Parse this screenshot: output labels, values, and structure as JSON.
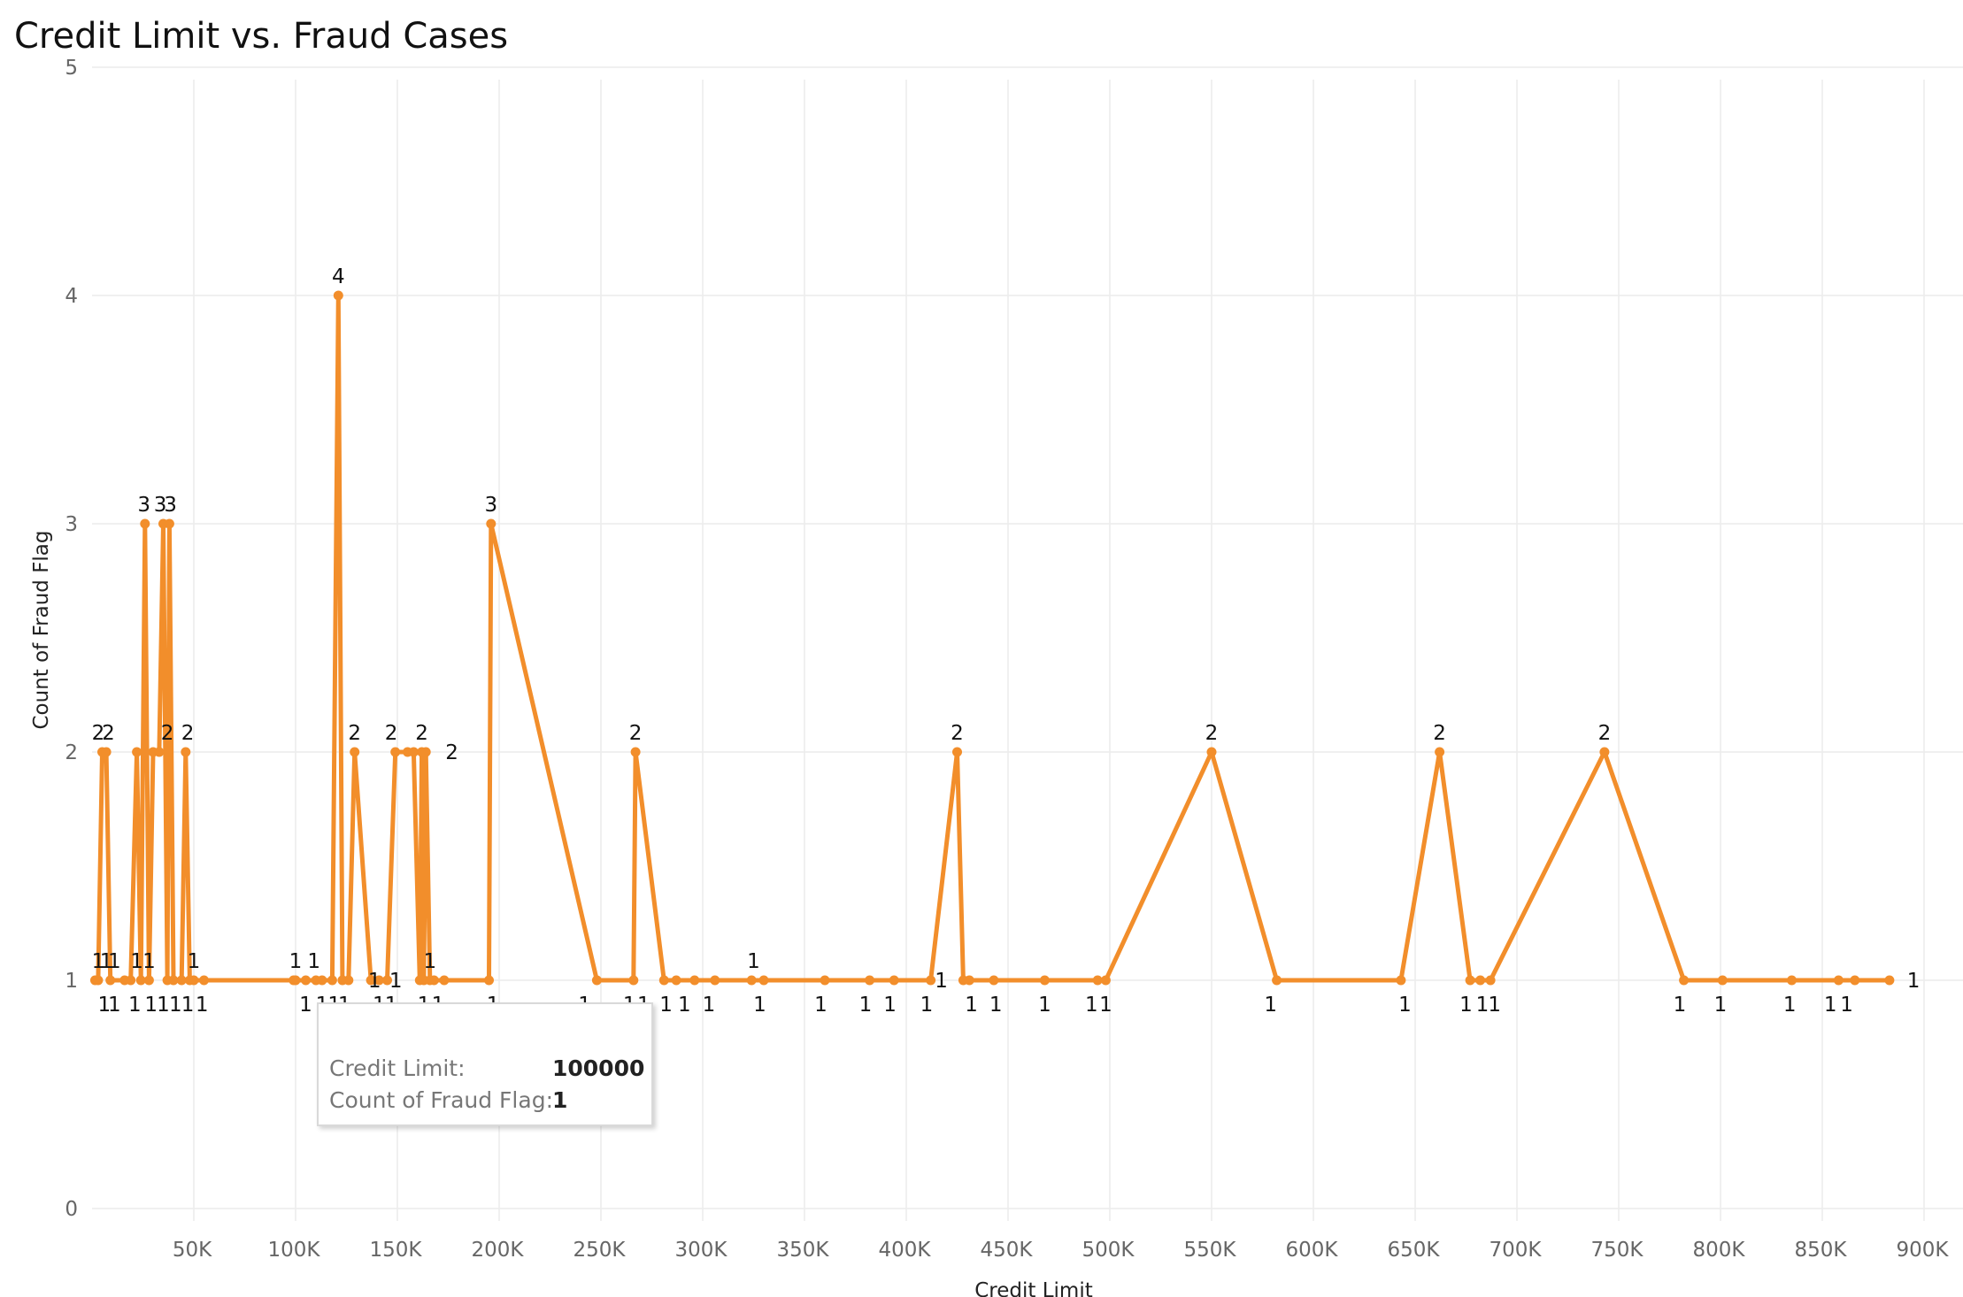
{
  "chart_data": {
    "type": "line",
    "title": "Credit Limit vs. Fraud Cases",
    "xlabel": "Credit Limit",
    "ylabel": "Count of Fraud Flag",
    "xlim": [
      0,
      925000
    ],
    "ylim": [
      0,
      5
    ],
    "x_ticks": [
      "50K",
      "100K",
      "150K",
      "200K",
      "250K",
      "300K",
      "350K",
      "400K",
      "450K",
      "500K",
      "550K",
      "600K",
      "650K",
      "700K",
      "750K",
      "800K",
      "850K",
      "900K"
    ],
    "x_tick_values": [
      50000,
      100000,
      150000,
      200000,
      250000,
      300000,
      350000,
      400000,
      450000,
      500000,
      550000,
      600000,
      650000,
      700000,
      750000,
      800000,
      850000,
      900000
    ],
    "y_ticks": [
      "0",
      "1",
      "2",
      "3",
      "4",
      "5"
    ],
    "y_tick_values": [
      0,
      1,
      2,
      3,
      4,
      5
    ],
    "grid": true,
    "color": "#f28e2b",
    "points": [
      [
        1500,
        1
      ],
      [
        3000,
        1
      ],
      [
        5000,
        2
      ],
      [
        7000,
        2
      ],
      [
        9000,
        1
      ],
      [
        16000,
        1
      ],
      [
        19000,
        1
      ],
      [
        22000,
        2
      ],
      [
        24000,
        1
      ],
      [
        26000,
        3
      ],
      [
        28000,
        1
      ],
      [
        30000,
        2
      ],
      [
        33000,
        2
      ],
      [
        35000,
        3
      ],
      [
        37000,
        1
      ],
      [
        38000,
        3
      ],
      [
        40000,
        1
      ],
      [
        44000,
        1
      ],
      [
        46000,
        2
      ],
      [
        48000,
        1
      ],
      [
        50000,
        1
      ],
      [
        55000,
        1
      ],
      [
        99000,
        1
      ],
      [
        100000,
        1
      ],
      [
        105000,
        1
      ],
      [
        110000,
        1
      ],
      [
        113000,
        1
      ],
      [
        118000,
        1
      ],
      [
        121000,
        4
      ],
      [
        123000,
        1
      ],
      [
        126000,
        1
      ],
      [
        129000,
        2
      ],
      [
        137000,
        1
      ],
      [
        141000,
        1
      ],
      [
        145000,
        1
      ],
      [
        149000,
        2
      ],
      [
        155000,
        2
      ],
      [
        158000,
        2
      ],
      [
        161000,
        1
      ],
      [
        162000,
        2
      ],
      [
        163000,
        1
      ],
      [
        164000,
        2
      ],
      [
        166000,
        1
      ],
      [
        168000,
        1
      ],
      [
        173000,
        1
      ],
      [
        195000,
        1
      ],
      [
        196000,
        3
      ],
      [
        248000,
        1
      ],
      [
        266000,
        1
      ],
      [
        267000,
        2
      ],
      [
        281000,
        1
      ],
      [
        287000,
        1
      ],
      [
        296000,
        1
      ],
      [
        306000,
        1
      ],
      [
        324000,
        1
      ],
      [
        330000,
        1
      ],
      [
        360000,
        1
      ],
      [
        382000,
        1
      ],
      [
        394000,
        1
      ],
      [
        412000,
        1
      ],
      [
        425000,
        2
      ],
      [
        428000,
        1
      ],
      [
        431000,
        1
      ],
      [
        443000,
        1
      ],
      [
        468000,
        1
      ],
      [
        494000,
        1
      ],
      [
        498000,
        1
      ],
      [
        550000,
        2
      ],
      [
        582000,
        1
      ],
      [
        643000,
        1
      ],
      [
        662000,
        2
      ],
      [
        677000,
        1
      ],
      [
        682000,
        1
      ],
      [
        687000,
        1
      ],
      [
        743000,
        2
      ],
      [
        782000,
        1
      ],
      [
        801000,
        1
      ],
      [
        835000,
        1
      ],
      [
        858000,
        1
      ],
      [
        866000,
        1
      ],
      [
        883000,
        1
      ]
    ],
    "data_labels": [
      {
        "text": "1",
        "x": 3000,
        "y": 1,
        "pos": "above"
      },
      {
        "text": "1",
        "x": 7000,
        "y": 1,
        "pos": "above"
      },
      {
        "text": "1",
        "x": 11000,
        "y": 1,
        "pos": "above"
      },
      {
        "text": "1",
        "x": 22000,
        "y": 1,
        "pos": "above"
      },
      {
        "text": "1",
        "x": 28000,
        "y": 1,
        "pos": "above"
      },
      {
        "text": "2",
        "x": 3000,
        "y": 2,
        "pos": "above"
      },
      {
        "text": "2",
        "x": 8000,
        "y": 2,
        "pos": "above"
      },
      {
        "text": "3",
        "x": 25500,
        "y": 3,
        "pos": "above"
      },
      {
        "text": "3",
        "x": 33500,
        "y": 3,
        "pos": "above"
      },
      {
        "text": "3",
        "x": 38500,
        "y": 3,
        "pos": "above"
      },
      {
        "text": "2",
        "x": 37000,
        "y": 2,
        "pos": "above"
      },
      {
        "text": "2",
        "x": 47000,
        "y": 2,
        "pos": "above"
      },
      {
        "text": "1",
        "x": 50000,
        "y": 1,
        "pos": "above"
      },
      {
        "text": "1",
        "x": 6000,
        "y": 1,
        "pos": "below"
      },
      {
        "text": "1",
        "x": 11000,
        "y": 1,
        "pos": "below"
      },
      {
        "text": "1",
        "x": 21000,
        "y": 1,
        "pos": "below"
      },
      {
        "text": "1",
        "x": 29000,
        "y": 1,
        "pos": "below"
      },
      {
        "text": "1",
        "x": 35000,
        "y": 1,
        "pos": "below"
      },
      {
        "text": "1",
        "x": 41000,
        "y": 1,
        "pos": "below"
      },
      {
        "text": "1",
        "x": 47000,
        "y": 1,
        "pos": "below"
      },
      {
        "text": "1",
        "x": 54000,
        "y": 1,
        "pos": "below"
      },
      {
        "text": "1",
        "x": 100000,
        "y": 1,
        "pos": "above"
      },
      {
        "text": "1",
        "x": 109000,
        "y": 1,
        "pos": "above"
      },
      {
        "text": "1",
        "x": 105000,
        "y": 1,
        "pos": "below"
      },
      {
        "text": "1",
        "x": 113000,
        "y": 1,
        "pos": "below"
      },
      {
        "text": "1",
        "x": 119000,
        "y": 1,
        "pos": "below"
      },
      {
        "text": "1",
        "x": 124000,
        "y": 1,
        "pos": "below"
      },
      {
        "text": "4",
        "x": 121000,
        "y": 4,
        "pos": "above"
      },
      {
        "text": "1",
        "x": 133000,
        "y": 1,
        "pos": "right"
      },
      {
        "text": "2",
        "x": 129000,
        "y": 2,
        "pos": "above"
      },
      {
        "text": "1",
        "x": 141000,
        "y": 1,
        "pos": "below"
      },
      {
        "text": "1",
        "x": 147000,
        "y": 1,
        "pos": "below"
      },
      {
        "text": "2",
        "x": 147000,
        "y": 2,
        "pos": "above"
      },
      {
        "text": "2",
        "x": 162000,
        "y": 2,
        "pos": "above"
      },
      {
        "text": "2",
        "x": 171000,
        "y": 2,
        "pos": "right"
      },
      {
        "text": "1",
        "x": 155000,
        "y": 1,
        "pos": "left"
      },
      {
        "text": "1",
        "x": 166000,
        "y": 1,
        "pos": "above"
      },
      {
        "text": "1",
        "x": 163000,
        "y": 1,
        "pos": "below"
      },
      {
        "text": "1",
        "x": 170000,
        "y": 1,
        "pos": "below"
      },
      {
        "text": "3",
        "x": 196000,
        "y": 3,
        "pos": "above"
      },
      {
        "text": "1",
        "x": 197000,
        "y": 1,
        "pos": "below"
      },
      {
        "text": "1",
        "x": 242000,
        "y": 1,
        "pos": "below"
      },
      {
        "text": "2",
        "x": 267000,
        "y": 2,
        "pos": "above"
      },
      {
        "text": "1",
        "x": 264000,
        "y": 1,
        "pos": "below"
      },
      {
        "text": "1",
        "x": 271000,
        "y": 1,
        "pos": "below"
      },
      {
        "text": "1",
        "x": 282000,
        "y": 1,
        "pos": "below"
      },
      {
        "text": "1",
        "x": 291000,
        "y": 1,
        "pos": "below"
      },
      {
        "text": "1",
        "x": 303000,
        "y": 1,
        "pos": "below"
      },
      {
        "text": "1",
        "x": 325000,
        "y": 1,
        "pos": "above"
      },
      {
        "text": "1",
        "x": 328000,
        "y": 1,
        "pos": "below"
      },
      {
        "text": "1",
        "x": 358000,
        "y": 1,
        "pos": "below"
      },
      {
        "text": "1",
        "x": 380000,
        "y": 1,
        "pos": "below"
      },
      {
        "text": "1",
        "x": 392000,
        "y": 1,
        "pos": "below"
      },
      {
        "text": "1",
        "x": 410000,
        "y": 1,
        "pos": "below"
      },
      {
        "text": "2",
        "x": 425000,
        "y": 2,
        "pos": "above"
      },
      {
        "text": "1",
        "x": 423000,
        "y": 1,
        "pos": "left"
      },
      {
        "text": "1",
        "x": 432000,
        "y": 1,
        "pos": "below"
      },
      {
        "text": "1",
        "x": 444000,
        "y": 1,
        "pos": "below"
      },
      {
        "text": "1",
        "x": 468000,
        "y": 1,
        "pos": "below"
      },
      {
        "text": "1",
        "x": 491000,
        "y": 1,
        "pos": "below"
      },
      {
        "text": "1",
        "x": 498000,
        "y": 1,
        "pos": "below"
      },
      {
        "text": "2",
        "x": 550000,
        "y": 2,
        "pos": "above"
      },
      {
        "text": "1",
        "x": 579000,
        "y": 1,
        "pos": "below"
      },
      {
        "text": "1",
        "x": 645000,
        "y": 1,
        "pos": "below"
      },
      {
        "text": "2",
        "x": 662000,
        "y": 2,
        "pos": "above"
      },
      {
        "text": "1",
        "x": 675000,
        "y": 1,
        "pos": "below"
      },
      {
        "text": "1",
        "x": 683000,
        "y": 1,
        "pos": "below"
      },
      {
        "text": "1",
        "x": 689000,
        "y": 1,
        "pos": "below"
      },
      {
        "text": "2",
        "x": 743000,
        "y": 2,
        "pos": "above"
      },
      {
        "text": "1",
        "x": 780000,
        "y": 1,
        "pos": "below"
      },
      {
        "text": "1",
        "x": 800000,
        "y": 1,
        "pos": "below"
      },
      {
        "text": "1",
        "x": 834000,
        "y": 1,
        "pos": "below"
      },
      {
        "text": "1",
        "x": 854000,
        "y": 1,
        "pos": "below"
      },
      {
        "text": "1",
        "x": 862000,
        "y": 1,
        "pos": "below"
      },
      {
        "text": "1",
        "x": 889000,
        "y": 1,
        "pos": "right"
      }
    ]
  },
  "tooltip": {
    "credit_limit_label": "Credit Limit:",
    "credit_limit_value": "100000",
    "count_label": "Count of Fraud Flag:",
    "count_value": "1"
  }
}
